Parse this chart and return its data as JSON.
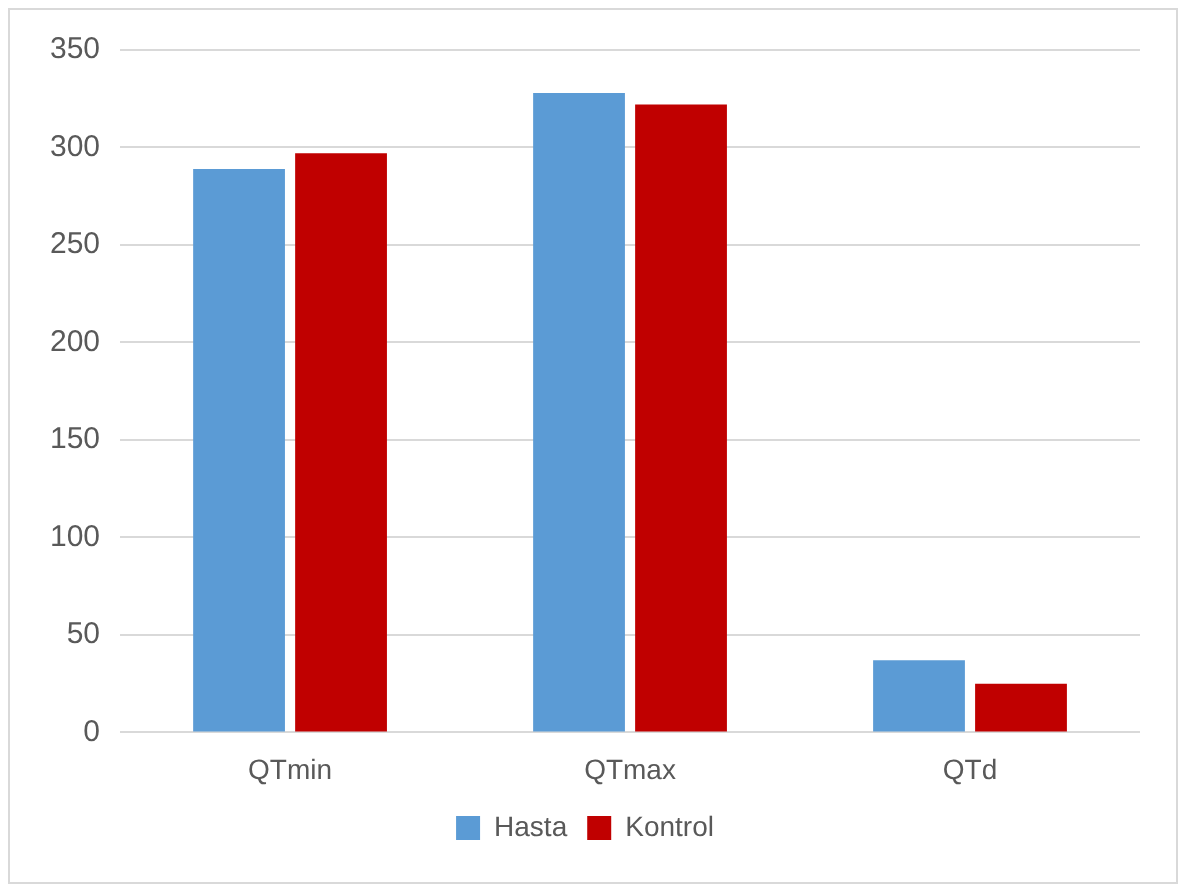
{
  "chart_data": {
    "type": "bar",
    "categories": [
      "QTmin",
      "QTmax",
      "QTd"
    ],
    "series": [
      {
        "name": "Hasta",
        "color": "#5b9bd5",
        "values": [
          289,
          328,
          37
        ]
      },
      {
        "name": "Kontrol",
        "color": "#c00000",
        "values": [
          297,
          322,
          25
        ]
      }
    ],
    "ylim": [
      0,
      350
    ],
    "yticks": [
      0,
      50,
      100,
      150,
      200,
      250,
      300,
      350
    ],
    "grid": "y",
    "legend": "bottom"
  }
}
